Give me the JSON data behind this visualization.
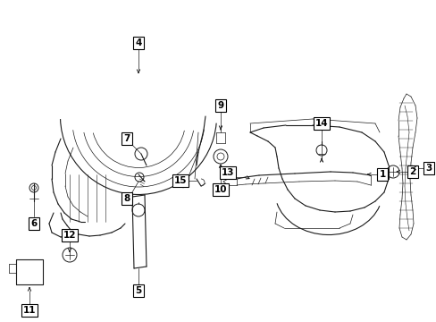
{
  "bg_color": "#ffffff",
  "line_color": "#1a1a1a",
  "label_fontsize": 7.5,
  "fig_width": 4.89,
  "fig_height": 3.6,
  "dpi": 100
}
